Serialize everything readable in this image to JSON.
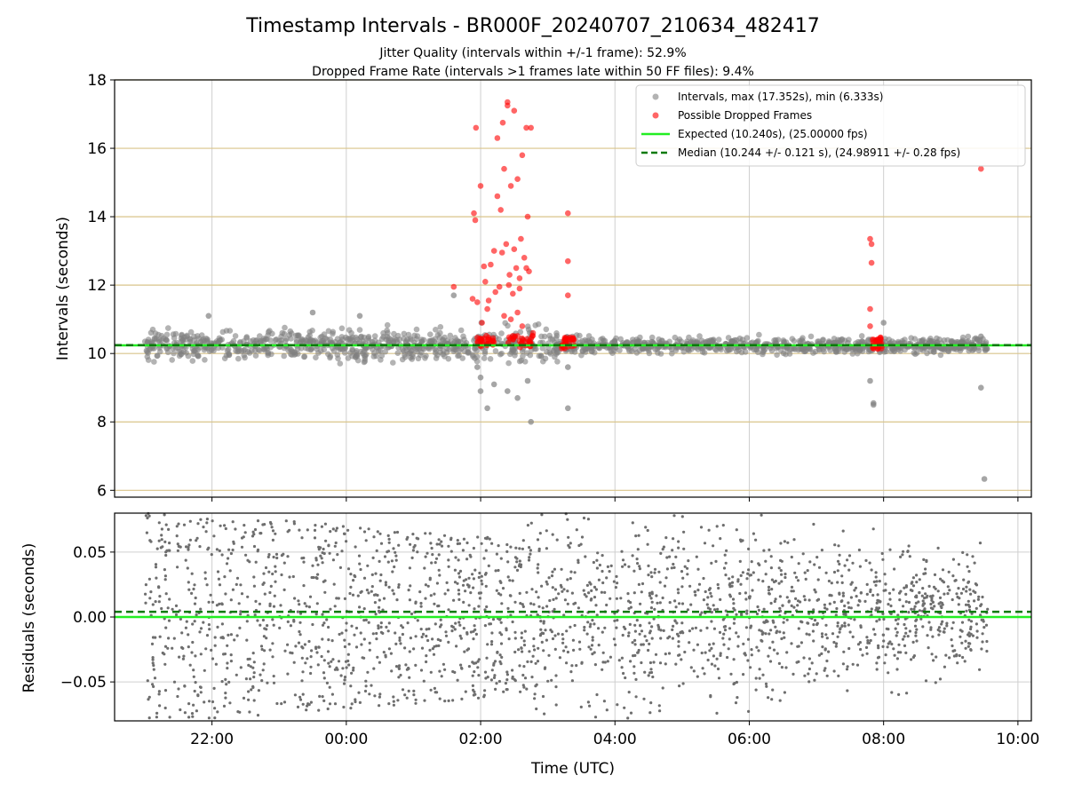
{
  "chart_data": [
    {
      "type": "scatter",
      "title": "Timestamp Intervals - BR000F_20240707_210634_482417",
      "subtitle_lines": [
        "Jitter Quality (intervals within +/-1 frame): 52.9%",
        "Dropped Frame Rate (intervals >1 frames late within 50 FF files): 9.4%"
      ],
      "ylabel": "Intervals (seconds)",
      "xlabel": "",
      "x_unit": "hours (UTC, continuing past midnight)",
      "xlim": [
        20.55,
        34.2
      ],
      "ylim": [
        5.8,
        18
      ],
      "yticks": [
        6,
        8,
        10,
        12,
        14,
        16,
        18
      ],
      "ytick_labels": [
        "6",
        "8",
        "10",
        "12",
        "14",
        "16",
        "18"
      ],
      "xticks": [
        22,
        24,
        26,
        28,
        30,
        32,
        34
      ],
      "grid": true,
      "legend_position": "top-right",
      "legend": [
        "Intervals, max (17.352s), min (6.333s)",
        "Possible Dropped Frames",
        "Expected (10.240s), (25.00000 fps)",
        "Median (10.244 +/- 0.121 s), (24.98911 +/- 0.28 fps)"
      ],
      "series": [
        {
          "name": "Intervals, max (17.352s), min (6.333s)",
          "style": "scatter",
          "color": "#808080",
          "x": [
            21.95,
            23.5,
            24.2,
            25.6,
            26.0,
            26.0,
            25.95,
            26.2,
            26.1,
            26.4,
            26.55,
            26.7,
            26.75,
            27.3,
            27.3,
            31.8,
            31.8,
            31.85,
            31.85,
            33.45,
            33.45,
            33.5,
            32.0
          ],
          "y": [
            11.1,
            11.2,
            11.1,
            11.7,
            9.3,
            8.9,
            9.6,
            9.1,
            8.4,
            8.9,
            8.7,
            9.2,
            8.0,
            9.6,
            8.4,
            10.2,
            9.2,
            8.5,
            8.55,
            10.5,
            9.0,
            6.333,
            10.9
          ],
          "band": {
            "x_range": [
              21.0,
              33.55
            ],
            "center": 10.24,
            "half_width": 0.45
          }
        },
        {
          "name": "Possible Dropped Frames",
          "style": "scatter",
          "color": "#ff0000",
          "x": [
            25.93,
            26.0,
            25.9,
            26.25,
            26.33,
            26.35,
            26.4,
            26.55,
            26.62,
            26.68,
            26.7,
            26.25,
            26.3,
            26.45,
            26.38,
            26.5,
            26.53,
            26.6,
            26.65,
            26.2,
            26.15,
            26.05,
            26.07,
            26.42,
            26.48,
            26.58,
            25.92,
            25.88,
            26.1,
            25.95,
            26.35,
            26.45,
            26.55,
            26.62,
            26.28,
            26.72,
            26.78,
            26.5,
            26.4,
            27.3,
            27.3,
            27.3,
            25.6,
            31.8,
            31.82,
            31.82,
            31.8,
            31.8,
            33.45,
            26.02,
            26.22,
            26.12,
            26.32,
            26.43,
            26.58,
            26.68,
            26.75
          ],
          "y": [
            16.6,
            14.9,
            14.1,
            16.3,
            16.75,
            15.4,
            17.35,
            15.1,
            15.8,
            16.6,
            14.0,
            14.6,
            14.2,
            14.9,
            13.2,
            13.05,
            12.5,
            13.35,
            12.8,
            13.0,
            12.6,
            12.55,
            12.1,
            12.0,
            11.75,
            12.2,
            13.9,
            11.6,
            11.3,
            11.5,
            11.1,
            11.0,
            11.2,
            10.8,
            11.95,
            12.4,
            10.6,
            17.1,
            17.25,
            14.1,
            12.7,
            11.7,
            11.95,
            13.35,
            13.2,
            12.65,
            11.3,
            10.8,
            15.4,
            10.9,
            11.8,
            11.55,
            12.95,
            12.3,
            11.9,
            12.5,
            16.6
          ],
          "clusters": [
            {
              "x_range": [
                25.95,
                26.2
              ],
              "y": 10.35
            },
            {
              "x_range": [
                26.4,
                26.85
              ],
              "y": 10.35
            },
            {
              "x_range": [
                27.2,
                27.4
              ],
              "y": 10.3
            },
            {
              "x_range": [
                31.8,
                31.98
              ],
              "y": 10.3
            }
          ]
        },
        {
          "name": "Expected (10.240s), (25.00000 fps)",
          "style": "line",
          "color": "#22ee22",
          "y": 10.24
        },
        {
          "name": "Median (10.244 +/- 0.121 s), (24.98911 +/- 0.28 fps)",
          "style": "dashed",
          "color": "#0a7a0a",
          "y": 10.244
        }
      ]
    },
    {
      "type": "scatter",
      "title": "",
      "ylabel": "Residuals (seconds)",
      "xlabel": "Time (UTC)",
      "x_unit": "hours (UTC, continuing past midnight)",
      "xlim": [
        20.55,
        34.2
      ],
      "ylim": [
        -0.08,
        0.08
      ],
      "yticks": [
        -0.05,
        0.0,
        0.05
      ],
      "ytick_labels": [
        "−0.05",
        "0.00",
        "0.05"
      ],
      "xticks": [
        22,
        24,
        26,
        28,
        30,
        32,
        34
      ],
      "xtick_labels": [
        "22:00",
        "00:00",
        "02:00",
        "04:00",
        "06:00",
        "08:00",
        "10:00"
      ],
      "grid": true,
      "series": [
        {
          "name": "",
          "style": "scatter",
          "color": "#6e6e6e",
          "x_range": [
            21.0,
            33.55
          ],
          "spread_start": 0.075,
          "spread_end": 0.03
        },
        {
          "name": "",
          "style": "line",
          "color": "#22ee22",
          "y": 0.0
        },
        {
          "name": "",
          "style": "dashed",
          "color": "#0a7a0a",
          "y": 0.004
        }
      ]
    }
  ]
}
